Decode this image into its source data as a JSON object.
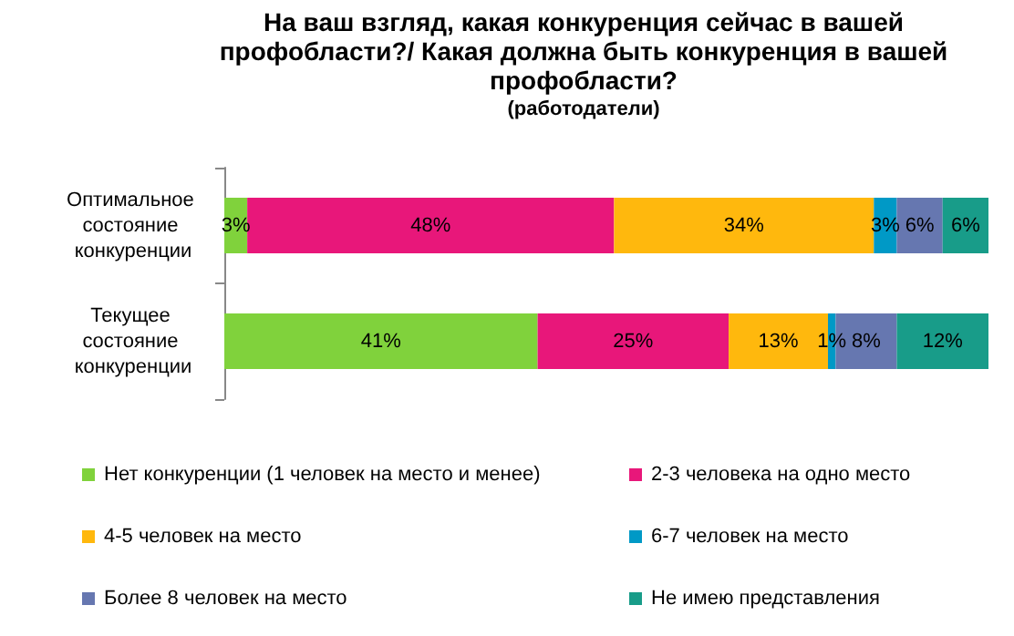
{
  "chart_data": {
    "type": "bar",
    "orientation": "horizontal",
    "stacked": true,
    "legend": "bottom",
    "tick_labels": "y",
    "title": "На ваш взгляд, какая конкуренция сейчас в вашей профобласти?/ Какая должна быть конкуренция в вашей профобласти?",
    "subtitle": "(работодатели)",
    "categories": [
      "Оптимальное состояние конкуренции",
      "Текущее состояние конкуренции"
    ],
    "series": [
      {
        "name": "Нет конкуренции (1 человек на место и менее)",
        "color": "#80d23c",
        "values": [
          3,
          41
        ],
        "value_labels": [
          "3%",
          "41%"
        ]
      },
      {
        "name": "2-3 человека на одно место",
        "color": "#e8177a",
        "values": [
          48,
          25
        ],
        "value_labels": [
          "48%",
          "25%"
        ]
      },
      {
        "name": "4-5 человек на место",
        "color": "#ffb80d",
        "values": [
          34,
          13
        ],
        "value_labels": [
          "34%",
          "13%"
        ]
      },
      {
        "name": "6-7 человек на место",
        "color": "#0099c6",
        "values": [
          3,
          1
        ],
        "value_labels": [
          "3%",
          "1%"
        ]
      },
      {
        "name": "Более 8 человек на место",
        "color": "#6677b0",
        "values": [
          6,
          8
        ],
        "value_labels": [
          "6%",
          "8%"
        ]
      },
      {
        "name": "Не имею представления",
        "color": "#189c89",
        "values": [
          6,
          12
        ],
        "value_labels": [
          "6%",
          "12%"
        ]
      }
    ]
  }
}
